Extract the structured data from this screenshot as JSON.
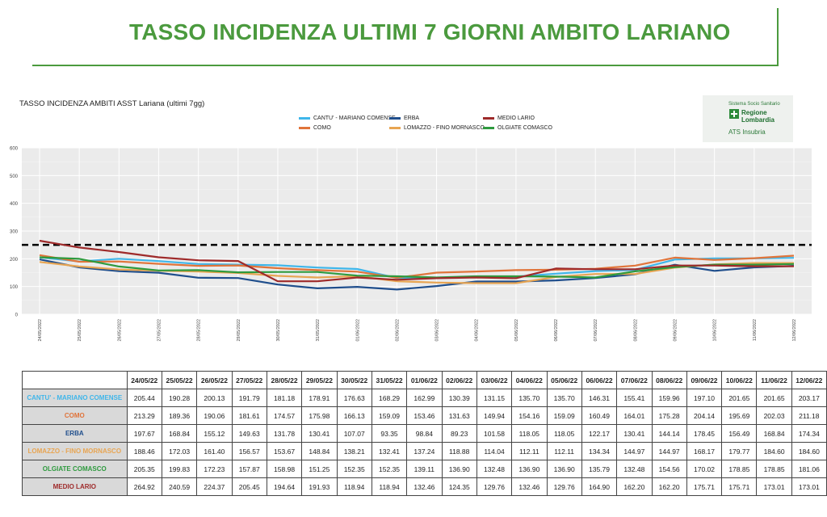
{
  "page": {
    "title": "TASSO INCIDENZA ULTIMI 7 GIORNI AMBITO LARIANO"
  },
  "logo": {
    "line1": "Sistema Socio Sanitario",
    "line2": "Regione Lombardia",
    "line3": "ATS Insubria"
  },
  "chart_data": {
    "type": "line",
    "title": "TASSO INCIDENZA AMBITI ASST Lariana (ultimi 7gg)",
    "xlabel": "",
    "ylabel": "",
    "ylim": [
      0,
      600
    ],
    "yticks": [
      0,
      100,
      200,
      300,
      400,
      500,
      600
    ],
    "grid": true,
    "background": "#ebebeb",
    "legend_position": "top",
    "threshold": {
      "value": 250,
      "style": "dashed",
      "color": "#000000"
    },
    "x": [
      "24/05/2022",
      "25/05/2022",
      "26/05/2022",
      "27/05/2022",
      "28/05/2022",
      "29/05/2022",
      "30/05/2022",
      "31/05/2022",
      "01/06/2022",
      "02/06/2022",
      "03/06/2022",
      "04/06/2022",
      "05/06/2022",
      "06/06/2022",
      "07/06/2022",
      "08/06/2022",
      "09/06/2022",
      "10/06/2022",
      "11/06/2022",
      "12/06/2022"
    ],
    "series": [
      {
        "name": "CANTU' - MARIANO COMENSE",
        "color": "#3fb6ea",
        "values": [
          205.44,
          190.28,
          200.13,
          191.79,
          181.18,
          178.91,
          176.63,
          168.29,
          162.99,
          130.39,
          131.15,
          135.7,
          135.7,
          146.31,
          155.41,
          159.96,
          197.1,
          201.65,
          201.65,
          203.17
        ]
      },
      {
        "name": "COMO",
        "color": "#e0743a",
        "values": [
          213.29,
          189.36,
          190.06,
          181.61,
          174.57,
          175.98,
          166.13,
          159.09,
          153.46,
          131.63,
          149.94,
          154.16,
          159.09,
          160.49,
          164.01,
          175.28,
          204.14,
          195.69,
          202.03,
          211.18
        ]
      },
      {
        "name": "ERBA",
        "color": "#1f4e8c",
        "values": [
          197.67,
          168.84,
          155.12,
          149.63,
          131.78,
          130.41,
          107.07,
          93.35,
          98.84,
          89.23,
          101.58,
          118.05,
          118.05,
          122.17,
          130.41,
          144.14,
          178.45,
          156.49,
          168.84,
          174.34
        ]
      },
      {
        "name": "LOMAZZO - FINO MORNASCO",
        "color": "#e8a552",
        "values": [
          188.46,
          172.03,
          161.4,
          156.57,
          153.67,
          148.84,
          138.21,
          132.41,
          137.24,
          118.88,
          114.04,
          112.11,
          112.11,
          134.34,
          144.97,
          144.97,
          168.17,
          179.77,
          184.6,
          184.6
        ]
      },
      {
        "name": "OLGIATE COMASCO",
        "color": "#2e9a3e",
        "values": [
          205.35,
          199.83,
          172.23,
          157.87,
          158.98,
          151.25,
          152.35,
          152.35,
          139.11,
          136.9,
          132.48,
          136.9,
          136.9,
          135.79,
          132.48,
          154.56,
          170.02,
          178.85,
          178.85,
          181.06
        ]
      },
      {
        "name": "MEDIO LARIO",
        "color": "#9e2a2a",
        "values": [
          264.92,
          240.59,
          224.37,
          205.45,
          194.64,
          191.93,
          118.94,
          118.94,
          132.46,
          124.35,
          129.76,
          132.46,
          129.76,
          164.9,
          162.2,
          162.2,
          175.71,
          175.71,
          173.01,
          173.01
        ]
      }
    ],
    "table": {
      "dates": [
        "24/05/22",
        "25/05/22",
        "26/05/22",
        "27/05/22",
        "28/05/22",
        "29/05/22",
        "30/05/22",
        "31/05/22",
        "01/06/22",
        "02/06/22",
        "03/06/22",
        "04/06/22",
        "05/06/22",
        "06/06/22",
        "07/06/22",
        "08/06/22",
        "09/06/22",
        "10/06/22",
        "11/06/22",
        "12/06/22"
      ],
      "rows": [
        {
          "label": "CANTU' - MARIANO COMENSE",
          "color": "#3fb6ea",
          "values": [
            "205.44",
            "190.28",
            "200.13",
            "191.79",
            "181.18",
            "178.91",
            "176.63",
            "168.29",
            "162.99",
            "130.39",
            "131.15",
            "135.70",
            "135.70",
            "146.31",
            "155.41",
            "159.96",
            "197.10",
            "201.65",
            "201.65",
            "203.17"
          ]
        },
        {
          "label": "COMO",
          "color": "#e0743a",
          "values": [
            "213.29",
            "189.36",
            "190.06",
            "181.61",
            "174.57",
            "175.98",
            "166.13",
            "159.09",
            "153.46",
            "131.63",
            "149.94",
            "154.16",
            "159.09",
            "160.49",
            "164.01",
            "175.28",
            "204.14",
            "195.69",
            "202.03",
            "211.18"
          ]
        },
        {
          "label": "ERBA",
          "color": "#1f4e8c",
          "values": [
            "197.67",
            "168.84",
            "155.12",
            "149.63",
            "131.78",
            "130.41",
            "107.07",
            "93.35",
            "98.84",
            "89.23",
            "101.58",
            "118.05",
            "118.05",
            "122.17",
            "130.41",
            "144.14",
            "178.45",
            "156.49",
            "168.84",
            "174.34"
          ]
        },
        {
          "label": "LOMAZZO - FINO MORNASCO",
          "color": "#e8a552",
          "values": [
            "188.46",
            "172.03",
            "161.40",
            "156.57",
            "153.67",
            "148.84",
            "138.21",
            "132.41",
            "137.24",
            "118.88",
            "114.04",
            "112.11",
            "112.11",
            "134.34",
            "144.97",
            "144.97",
            "168.17",
            "179.77",
            "184.60",
            "184.60"
          ]
        },
        {
          "label": "OLGIATE COMASCO",
          "color": "#2e9a3e",
          "values": [
            "205.35",
            "199.83",
            "172.23",
            "157.87",
            "158.98",
            "151.25",
            "152.35",
            "152.35",
            "139.11",
            "136.90",
            "132.48",
            "136.90",
            "136.90",
            "135.79",
            "132.48",
            "154.56",
            "170.02",
            "178.85",
            "178.85",
            "181.06"
          ]
        },
        {
          "label": "MEDIO LARIO",
          "color": "#9e2a2a",
          "values": [
            "264.92",
            "240.59",
            "224.37",
            "205.45",
            "194.64",
            "191.93",
            "118.94",
            "118.94",
            "132.46",
            "124.35",
            "129.76",
            "132.46",
            "129.76",
            "164.90",
            "162.20",
            "162.20",
            "175.71",
            "175.71",
            "173.01",
            "173.01"
          ]
        }
      ]
    }
  }
}
